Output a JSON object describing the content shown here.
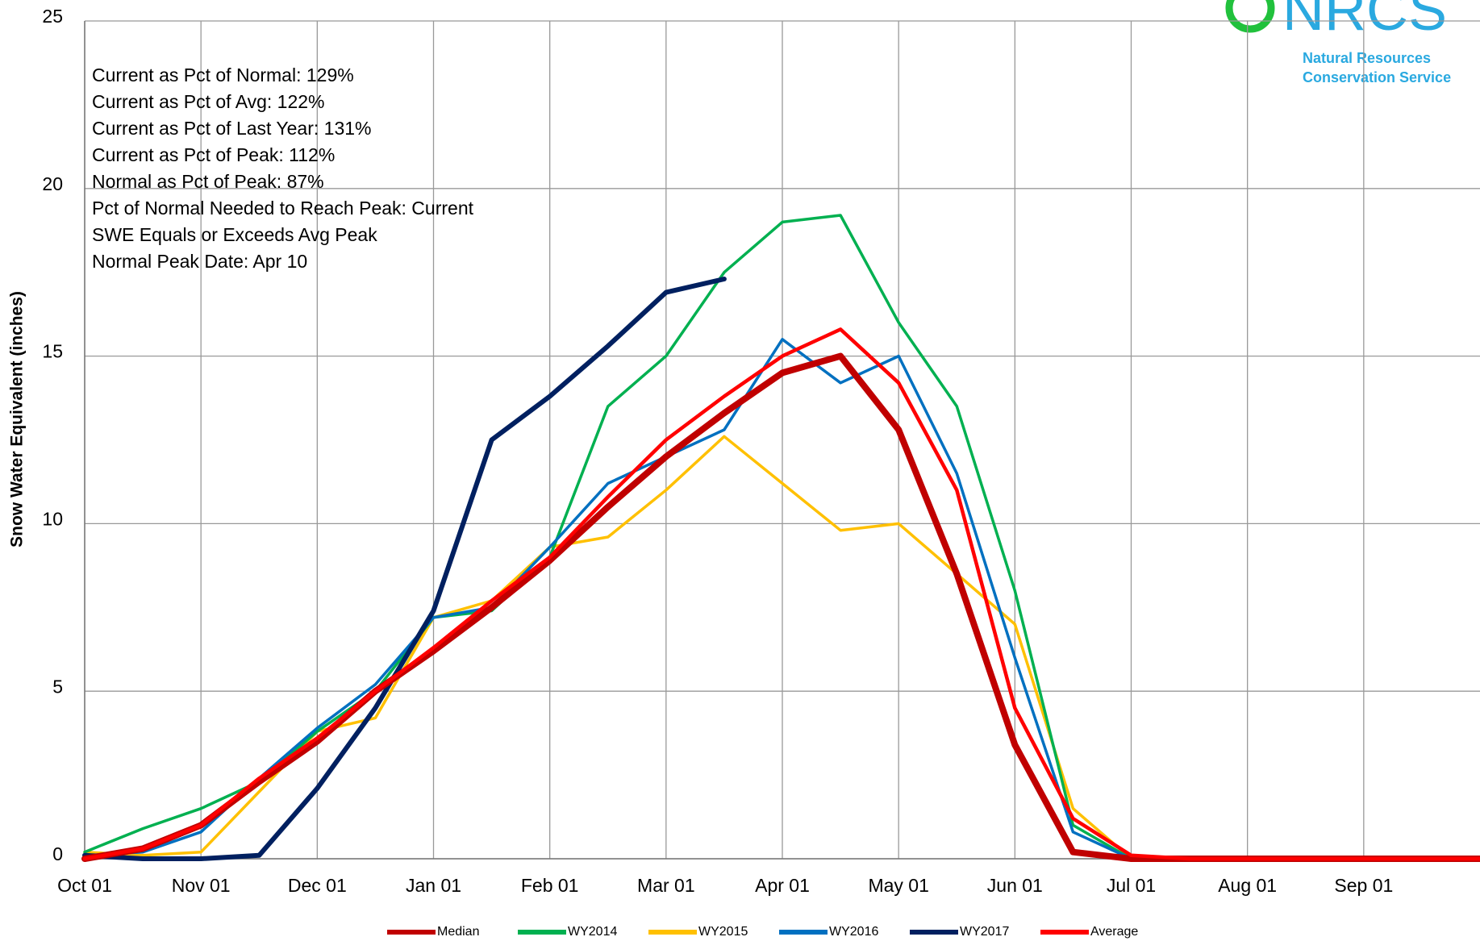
{
  "chart_data": {
    "type": "line",
    "y_label": "Snow Water Equivalent (inches)",
    "annotations": [
      "Current  as Pct of Normal:  129%",
      "Current  as Pct of Avg:  122%",
      "Current  as Pct of Last Year:  131%",
      "Current  as Pct of Peak:  112%",
      "Normal  as Pct of Peak:  87%",
      "Pct of Normal Needed  to Reach Peak: Current",
      "SWE Equals  or Exceeds Avg  Peak",
      "Normal  Peak Date:  Apr 10"
    ],
    "logo_text": "NRCS",
    "logo_subtitle": [
      "Natural Resources",
      "Conservation Service"
    ],
    "categories": [
      "Oct 01",
      null,
      "Nov 01",
      null,
      "Dec 01",
      null,
      "Jan 01",
      null,
      "Feb 01",
      null,
      "Mar 01",
      null,
      "Apr 01",
      null,
      "May 01",
      null,
      "Jun 01",
      null,
      "Jul 01",
      null,
      "Aug 01",
      null,
      "Sep 01",
      null,
      null
    ],
    "ylim": [
      0,
      25
    ],
    "yticks": [
      0,
      5,
      10,
      15,
      20,
      25
    ],
    "grid": true,
    "series": [
      {
        "name": "Median",
        "color": "#c00000",
        "values": [
          0,
          0.3,
          1.0,
          2.3,
          3.5,
          5.0,
          6.2,
          7.5,
          8.9,
          10.5,
          12.0,
          13.3,
          14.5,
          15.0,
          12.8,
          8.5,
          3.4,
          0.2,
          0,
          0,
          0,
          0,
          0,
          0,
          0
        ]
      },
      {
        "name": "WY2014",
        "color": "#00b050",
        "values": [
          0.2,
          0.9,
          1.5,
          2.3,
          3.8,
          5.0,
          7.2,
          7.4,
          9.0,
          13.5,
          15.0,
          17.5,
          19.0,
          19.2,
          16.0,
          13.5,
          8.0,
          1.0,
          0,
          0,
          0,
          0,
          0,
          0,
          0
        ]
      },
      {
        "name": "WY2015",
        "color": "#ffc000",
        "values": [
          0.2,
          0.1,
          0.2,
          2.0,
          3.8,
          4.2,
          7.2,
          7.7,
          9.3,
          9.6,
          11.0,
          12.6,
          11.2,
          9.8,
          10.0,
          8.5,
          7.0,
          1.5,
          0,
          0,
          0,
          0,
          0,
          0,
          0
        ]
      },
      {
        "name": "WY2016",
        "color": "#0070c0",
        "values": [
          0.1,
          0.2,
          0.8,
          2.4,
          3.9,
          5.2,
          7.2,
          7.5,
          9.3,
          11.2,
          12.0,
          12.8,
          15.5,
          14.2,
          15.0,
          11.5,
          6.0,
          0.8,
          0,
          0,
          0,
          0,
          0,
          0,
          0
        ]
      },
      {
        "name": "WY2017",
        "color": "#002060",
        "values": [
          0.1,
          0,
          0,
          0.1,
          2.1,
          4.5,
          7.4,
          12.5,
          13.8,
          15.3,
          16.9,
          17.3,
          null,
          null,
          null,
          null,
          null,
          null,
          null,
          null,
          null,
          null,
          null,
          null,
          null
        ]
      },
      {
        "name": "Average",
        "color": "#ff0000",
        "values": [
          0,
          0.3,
          1.0,
          2.4,
          3.6,
          5.0,
          6.3,
          7.7,
          9.0,
          10.8,
          12.5,
          13.8,
          15.0,
          15.8,
          14.2,
          11.0,
          4.5,
          1.2,
          0.1,
          0,
          0,
          0,
          0,
          0,
          0
        ]
      }
    ]
  }
}
